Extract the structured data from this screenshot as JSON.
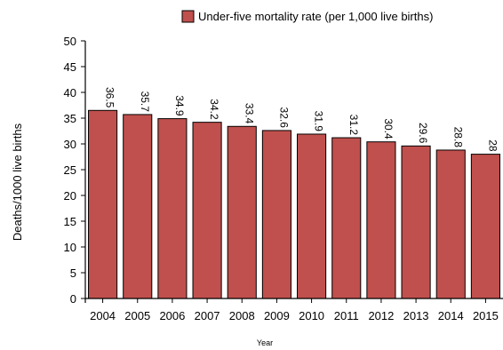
{
  "chart_data": {
    "type": "bar",
    "categories": [
      "2004",
      "2005",
      "2006",
      "2007",
      "2008",
      "2009",
      "2010",
      "2011",
      "2012",
      "2013",
      "2014",
      "2015"
    ],
    "series": [
      {
        "name": "Under-five mortality rate (per 1,000 live births)",
        "values": [
          36.5,
          35.7,
          34.9,
          34.2,
          33.4,
          32.6,
          31.9,
          31.2,
          30.4,
          29.6,
          28.8,
          28
        ],
        "labels": [
          "36.5",
          "35.7",
          "34.9",
          "34.2",
          "33.4",
          "32.6",
          "31.9",
          "31.2",
          "30.4",
          "29.6",
          "28.8",
          "28"
        ],
        "color": "#c0504d"
      }
    ],
    "xlabel": "Year",
    "ylabel": "Deaths/1000 live births",
    "ylim": [
      0,
      50
    ],
    "yticks": [
      "0",
      "5",
      "10",
      "15",
      "20",
      "25",
      "30",
      "35",
      "40",
      "45",
      "50"
    ],
    "grid": false,
    "legend": "top"
  }
}
